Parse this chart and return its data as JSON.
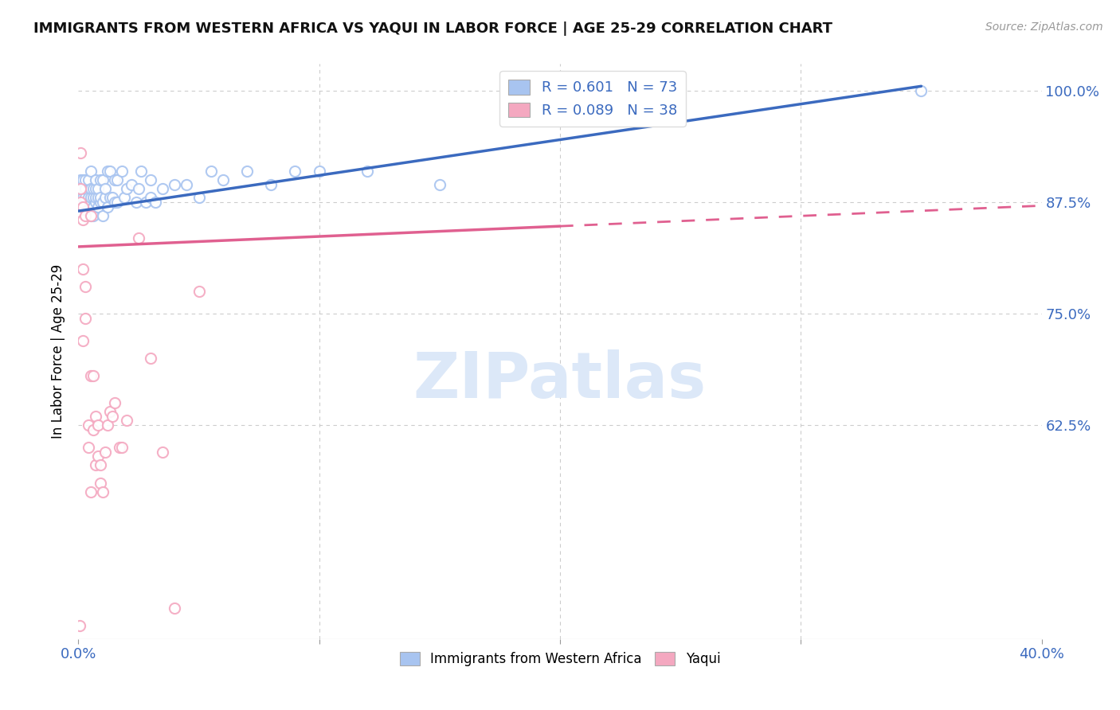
{
  "title": "IMMIGRANTS FROM WESTERN AFRICA VS YAQUI IN LABOR FORCE | AGE 25-29 CORRELATION CHART",
  "source": "Source: ZipAtlas.com",
  "ylabel": "In Labor Force | Age 25-29",
  "ytick_labels": [
    "100.0%",
    "87.5%",
    "75.0%",
    "62.5%"
  ],
  "ytick_values": [
    1.0,
    0.875,
    0.75,
    0.625
  ],
  "xlim": [
    0.0,
    0.4
  ],
  "ylim": [
    0.385,
    1.03
  ],
  "blue_R": 0.601,
  "blue_N": 73,
  "pink_R": 0.089,
  "pink_N": 38,
  "blue_color": "#a8c4f0",
  "pink_color": "#f4a8c0",
  "blue_line_color": "#3b6abf",
  "pink_line_color": "#e06090",
  "watermark_text": "ZIPatlas",
  "watermark_color": "#dce8f8",
  "blue_scatter_x": [
    0.0005,
    0.001,
    0.001,
    0.0015,
    0.002,
    0.002,
    0.002,
    0.003,
    0.003,
    0.003,
    0.003,
    0.004,
    0.004,
    0.004,
    0.004,
    0.005,
    0.005,
    0.005,
    0.005,
    0.005,
    0.005,
    0.006,
    0.006,
    0.006,
    0.006,
    0.007,
    0.007,
    0.007,
    0.007,
    0.008,
    0.008,
    0.008,
    0.009,
    0.009,
    0.009,
    0.01,
    0.01,
    0.01,
    0.011,
    0.011,
    0.012,
    0.012,
    0.013,
    0.013,
    0.014,
    0.015,
    0.015,
    0.016,
    0.016,
    0.018,
    0.019,
    0.02,
    0.022,
    0.024,
    0.025,
    0.026,
    0.028,
    0.03,
    0.03,
    0.032,
    0.035,
    0.04,
    0.045,
    0.05,
    0.055,
    0.06,
    0.07,
    0.08,
    0.09,
    0.1,
    0.12,
    0.15,
    0.35
  ],
  "blue_scatter_y": [
    0.875,
    0.88,
    0.9,
    0.875,
    0.87,
    0.88,
    0.9,
    0.875,
    0.88,
    0.89,
    0.9,
    0.87,
    0.875,
    0.88,
    0.9,
    0.86,
    0.87,
    0.875,
    0.88,
    0.89,
    0.91,
    0.86,
    0.87,
    0.88,
    0.89,
    0.875,
    0.88,
    0.89,
    0.9,
    0.87,
    0.88,
    0.89,
    0.875,
    0.88,
    0.9,
    0.86,
    0.875,
    0.9,
    0.88,
    0.89,
    0.87,
    0.91,
    0.88,
    0.91,
    0.88,
    0.875,
    0.9,
    0.875,
    0.9,
    0.91,
    0.88,
    0.89,
    0.895,
    0.875,
    0.89,
    0.91,
    0.875,
    0.88,
    0.9,
    0.875,
    0.89,
    0.895,
    0.895,
    0.88,
    0.91,
    0.9,
    0.91,
    0.895,
    0.91,
    0.91,
    0.91,
    0.895,
    1.0
  ],
  "pink_scatter_x": [
    0.0005,
    0.001,
    0.001,
    0.001,
    0.002,
    0.002,
    0.002,
    0.002,
    0.003,
    0.003,
    0.003,
    0.004,
    0.004,
    0.005,
    0.005,
    0.005,
    0.006,
    0.006,
    0.007,
    0.007,
    0.008,
    0.008,
    0.009,
    0.009,
    0.01,
    0.011,
    0.012,
    0.013,
    0.014,
    0.015,
    0.017,
    0.018,
    0.02,
    0.025,
    0.03,
    0.035,
    0.04,
    0.05
  ],
  "pink_scatter_y": [
    0.4,
    0.875,
    0.89,
    0.93,
    0.72,
    0.8,
    0.855,
    0.87,
    0.745,
    0.78,
    0.86,
    0.6,
    0.625,
    0.55,
    0.68,
    0.86,
    0.62,
    0.68,
    0.58,
    0.635,
    0.59,
    0.625,
    0.58,
    0.56,
    0.55,
    0.595,
    0.625,
    0.64,
    0.635,
    0.65,
    0.6,
    0.6,
    0.63,
    0.835,
    0.7,
    0.595,
    0.42,
    0.775
  ],
  "blue_trend_x0": 0.0,
  "blue_trend_y0": 0.865,
  "blue_trend_x1": 0.35,
  "blue_trend_y1": 1.005,
  "pink_trend_solid_x0": 0.0,
  "pink_trend_solid_y0": 0.825,
  "pink_trend_solid_x1": 0.2,
  "pink_trend_solid_y1": 0.848,
  "pink_trend_dash_x0": 0.2,
  "pink_trend_dash_y0": 0.848,
  "pink_trend_dash_x1": 0.4,
  "pink_trend_dash_y1": 0.871,
  "legend_label_blue": "Immigrants from Western Africa",
  "legend_label_pink": "Yaqui"
}
